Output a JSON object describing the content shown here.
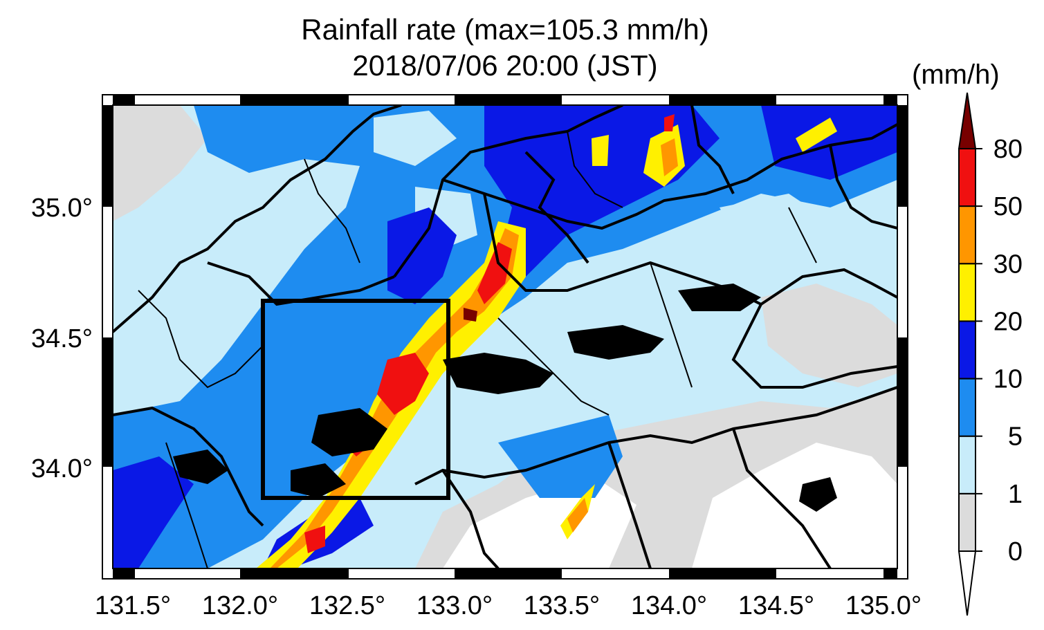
{
  "title": {
    "line1": "Rainfall rate (max=105.3 mm/h)",
    "line2": "2018/07/06 20:00 (JST)"
  },
  "colorbar": {
    "unit": "(mm/h)",
    "labels": [
      "0",
      "1",
      "5",
      "10",
      "20",
      "30",
      "50",
      "80"
    ],
    "colors": [
      "#ffffff",
      "#dcdcdc",
      "#c8ecfa",
      "#1e8cf0",
      "#0a18e6",
      "#fff000",
      "#ff9600",
      "#f01010",
      "#780000"
    ]
  },
  "axes": {
    "lon_ticks": [
      "131.5°",
      "132.0°",
      "132.5°",
      "133.0°",
      "133.5°",
      "134.0°",
      "134.5°",
      "135.0°"
    ],
    "lat_ticks": [
      "35.0°",
      "34.5°",
      "34.0°"
    ]
  }
}
